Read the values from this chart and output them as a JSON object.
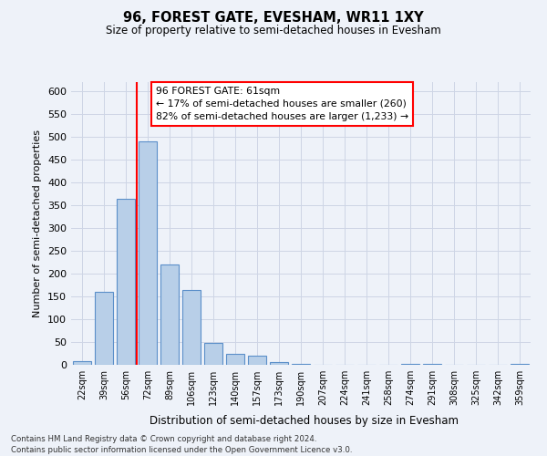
{
  "title": "96, FOREST GATE, EVESHAM, WR11 1XY",
  "subtitle": "Size of property relative to semi-detached houses in Evesham",
  "xlabel": "Distribution of semi-detached houses by size in Evesham",
  "ylabel": "Number of semi-detached properties",
  "categories": [
    "22sqm",
    "39sqm",
    "56sqm",
    "72sqm",
    "89sqm",
    "106sqm",
    "123sqm",
    "140sqm",
    "157sqm",
    "173sqm",
    "190sqm",
    "207sqm",
    "224sqm",
    "241sqm",
    "258sqm",
    "274sqm",
    "291sqm",
    "308sqm",
    "325sqm",
    "342sqm",
    "359sqm"
  ],
  "values": [
    8,
    160,
    363,
    490,
    220,
    165,
    48,
    25,
    20,
    7,
    2,
    1,
    0,
    1,
    0,
    2,
    2,
    0,
    0,
    1,
    2
  ],
  "bar_color": "#b8cfe8",
  "bar_edge_color": "#5b8fc9",
  "vline_color": "red",
  "vline_pos": 2.5,
  "annotation_title": "96 FOREST GATE: 61sqm",
  "annotation_line1": "← 17% of semi-detached houses are smaller (260)",
  "annotation_line2": "82% of semi-detached houses are larger (1,233) →",
  "annotation_box_color": "white",
  "annotation_box_edge": "red",
  "ylim": [
    0,
    620
  ],
  "yticks": [
    0,
    50,
    100,
    150,
    200,
    250,
    300,
    350,
    400,
    450,
    500,
    550,
    600
  ],
  "footer_line1": "Contains HM Land Registry data © Crown copyright and database right 2024.",
  "footer_line2": "Contains public sector information licensed under the Open Government Licence v3.0.",
  "bg_color": "#eef2f9",
  "grid_color": "#cdd5e5"
}
